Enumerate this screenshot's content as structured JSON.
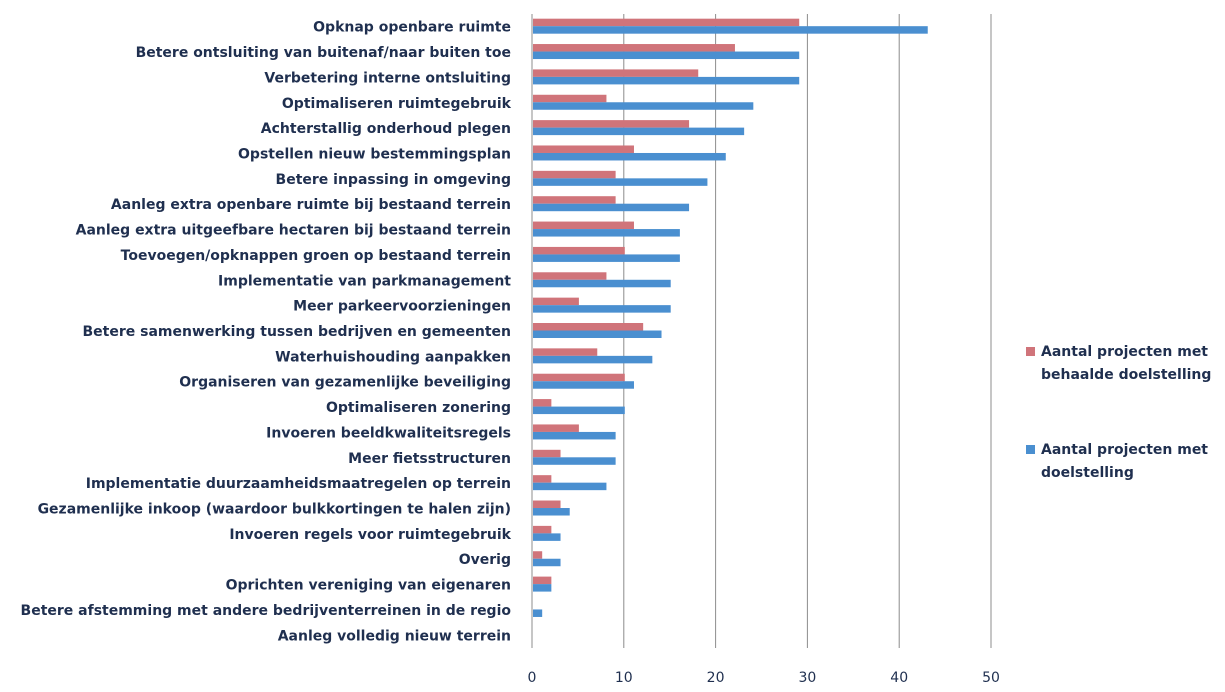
{
  "chart_data": {
    "type": "bar",
    "orientation": "horizontal",
    "categories": [
      "Opknap openbare ruimte",
      "Betere ontsluiting van buitenaf/naar buiten toe",
      "Verbetering interne ontsluiting",
      "Optimaliseren ruimtegebruik",
      "Achterstallig onderhoud plegen",
      "Opstellen nieuw bestemmingsplan",
      "Betere inpassing in omgeving",
      "Aanleg extra openbare ruimte bij bestaand terrein",
      "Aanleg extra uitgeefbare hectaren bij bestaand terrein",
      "Toevoegen/opknappen groen op bestaand terrein",
      "Implementatie van parkmanagement",
      "Meer parkeervoorzieningen",
      "Betere samenwerking tussen bedrijven en gemeenten",
      "Waterhuishouding aanpakken",
      "Organiseren van gezamenlijke beveiliging",
      "Optimaliseren zonering",
      "Invoeren beeldkwaliteitsregels",
      "Meer fietsstructuren",
      "Implementatie duurzaamheidsmaatregelen op terrein",
      "Gezamenlijke inkoop (waardoor bulkkortingen te halen zijn)",
      "Invoeren regels voor ruimtegebruik",
      "Overig",
      "Oprichten vereniging van eigenaren",
      "Betere afstemming met andere bedrijventerreinen in de regio",
      "Aanleg volledig nieuw terrein"
    ],
    "series": [
      {
        "name": "Aantal projecten met behaalde doelstelling",
        "color": "#d0747a",
        "values": [
          29,
          22,
          18,
          8,
          17,
          11,
          9,
          9,
          11,
          10,
          8,
          5,
          12,
          7,
          10,
          2,
          5,
          3,
          2,
          3,
          2,
          1,
          2,
          0,
          0
        ]
      },
      {
        "name": "Aantal projecten met doelstelling",
        "color": "#4a8fd0",
        "values": [
          43,
          29,
          29,
          24,
          23,
          21,
          19,
          17,
          16,
          16,
          15,
          15,
          14,
          13,
          11,
          10,
          9,
          9,
          8,
          4,
          3,
          3,
          2,
          1,
          0
        ]
      }
    ],
    "xlim": [
      0,
      50
    ],
    "xticks": [
      0,
      10,
      20,
      30,
      40,
      50
    ],
    "grid": true,
    "legend": {
      "position": "right",
      "items": [
        [
          "Aantal projecten met",
          "behaalde doelstelling"
        ],
        [
          "Aantal projecten met",
          "doelstelling"
        ]
      ]
    },
    "title": "",
    "xlabel": "",
    "ylabel": ""
  }
}
